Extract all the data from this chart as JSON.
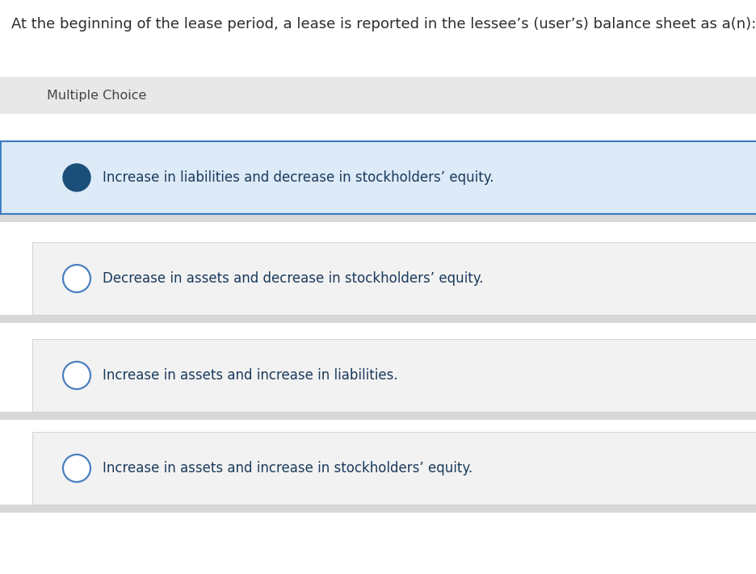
{
  "question": "At the beginning of the lease period, a lease is reported in the lessee’s (user’s) balance sheet as a(n):",
  "question_color": "#2c2c2c",
  "label": "Multiple Choice",
  "label_color": "#444444",
  "label_bg": "#e8e8e8",
  "options": [
    "Increase in liabilities and decrease in stockholders’ equity.",
    "Decrease in assets and decrease in stockholders’ equity.",
    "Increase in assets and increase in liabilities.",
    "Increase in assets and increase in stockholders’ equity."
  ],
  "selected_index": 0,
  "option_text_color": "#1a3a5c",
  "selected_bg": "#ddeaf7",
  "selected_border": "#3a7abf",
  "unselected_bg": "#f2f2f2",
  "unselected_border": "#cccccc",
  "filled_circle_color": "#1a4f7a",
  "empty_circle_color": "#ffffff",
  "empty_circle_border": "#4a7fbf",
  "bg_color": "#ffffff",
  "section_bg": "#e8e8e8",
  "separator_color": "#d8d8d8",
  "font_size_question": 13.0,
  "font_size_label": 11.5,
  "font_size_option": 12.0,
  "fig_width": 9.36,
  "fig_height": 7.11,
  "dpi": 100
}
